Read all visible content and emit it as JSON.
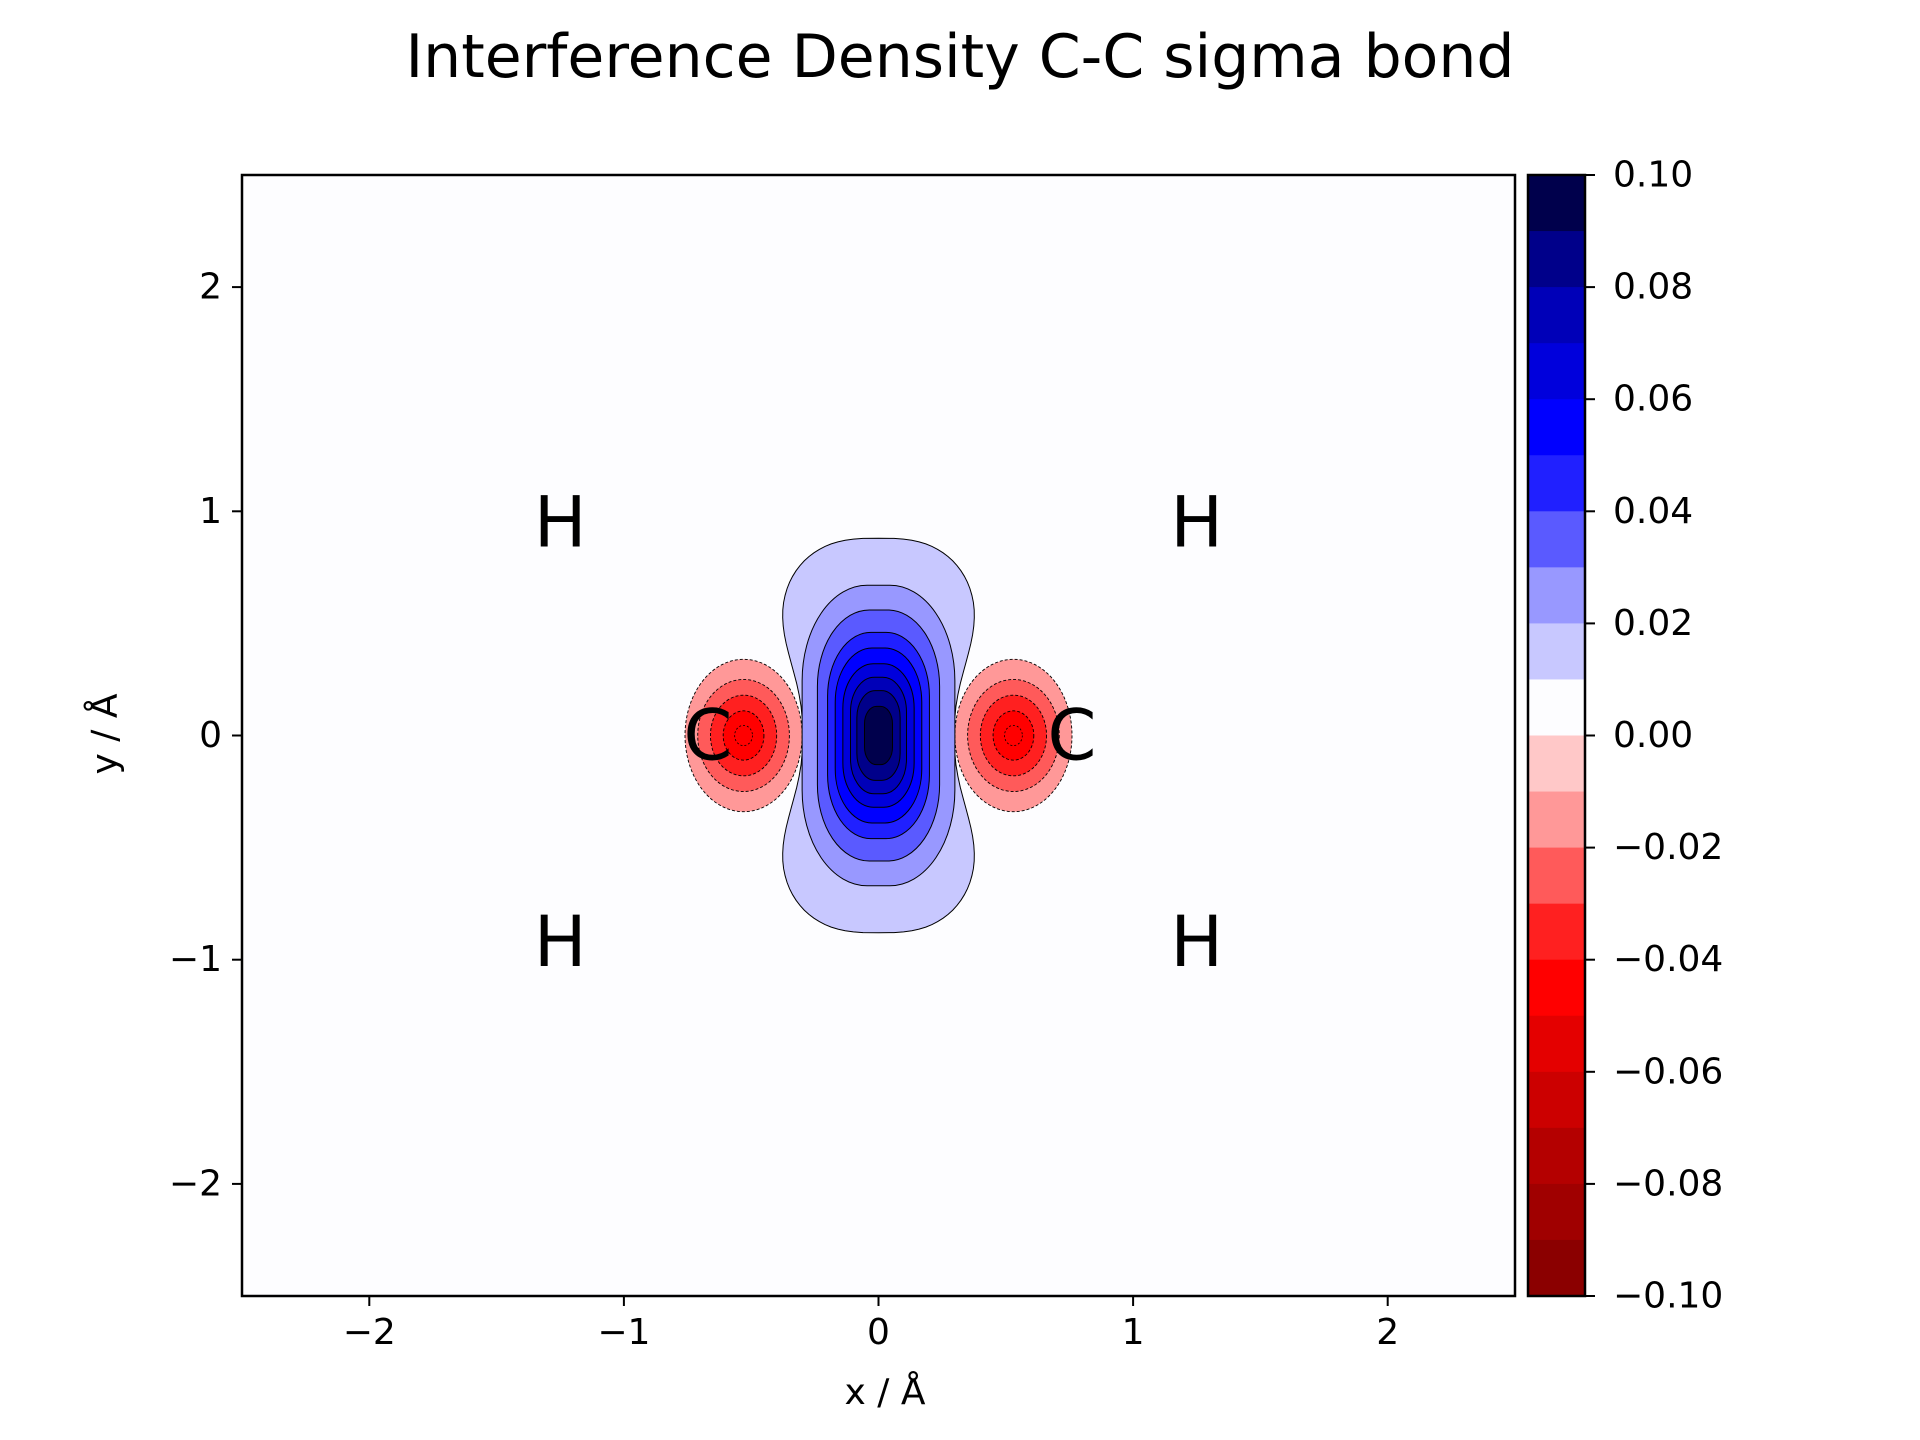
{
  "chart_data": {
    "type": "contour",
    "title": "Interference Density C-C sigma bond",
    "xlabel": "x / Å",
    "ylabel": "y / Å",
    "xlim": [
      -2.5,
      2.5
    ],
    "ylim": [
      -2.5,
      2.5
    ],
    "xticks": [
      -2,
      -1,
      0,
      1,
      2
    ],
    "yticks": [
      -2,
      -1,
      0,
      1,
      2
    ],
    "xtick_labels": [
      "−2",
      "−1",
      "0",
      "1",
      "2"
    ],
    "ytick_labels": [
      "−2",
      "−1",
      "0",
      "1",
      "2"
    ],
    "grid": false,
    "colormap": "seismic_r",
    "colorbar": {
      "range": [
        -0.1,
        0.1
      ],
      "ticks": [
        0.1,
        0.08,
        0.06,
        0.04,
        0.02,
        0.0,
        -0.02,
        -0.04,
        -0.06,
        -0.08,
        -0.1
      ],
      "tick_labels": [
        "0.10",
        "0.08",
        "0.06",
        "0.04",
        "0.02",
        "0.00",
        "−0.02",
        "−0.04",
        "−0.06",
        "−0.08",
        "−0.10"
      ],
      "level_step": 0.01,
      "colors_top_to_bottom": [
        "#00004c",
        "#00008a",
        "#0000b8",
        "#0000dc",
        "#0000ff",
        "#2020ff",
        "#5a5aff",
        "#9898ff",
        "#c8c8ff",
        "#fdfdff",
        "#ffc8c8",
        "#ff9898",
        "#ff5a5a",
        "#ff2020",
        "#ff0000",
        "#e40000",
        "#cc0000",
        "#b40000",
        "#a00000",
        "#8b0000"
      ]
    },
    "atoms": [
      {
        "label": "H",
        "x": -1.25,
        "y": 0.95
      },
      {
        "label": "H",
        "x": 1.25,
        "y": 0.95
      },
      {
        "label": "H",
        "x": -1.25,
        "y": -0.92
      },
      {
        "label": "H",
        "x": 1.25,
        "y": -0.92
      },
      {
        "label": "C",
        "x": -0.67,
        "y": 0.0
      },
      {
        "label": "C",
        "x": 0.76,
        "y": 0.0
      }
    ],
    "positive_lobe": {
      "center": [
        0.0,
        0.0
      ],
      "peak_value": 0.1,
      "contour_levels": [
        {
          "value": 0.01,
          "half_width": 0.48,
          "half_height": 0.88
        },
        {
          "value": 0.02,
          "half_width": 0.3,
          "half_height": 0.67
        },
        {
          "value": 0.03,
          "half_width": 0.24,
          "half_height": 0.56
        },
        {
          "value": 0.04,
          "half_width": 0.2,
          "half_height": 0.46
        },
        {
          "value": 0.05,
          "half_width": 0.17,
          "half_height": 0.39
        },
        {
          "value": 0.06,
          "half_width": 0.14,
          "half_height": 0.32
        },
        {
          "value": 0.07,
          "half_width": 0.11,
          "half_height": 0.26
        },
        {
          "value": 0.08,
          "half_width": 0.085,
          "half_height": 0.2
        },
        {
          "value": 0.09,
          "half_width": 0.055,
          "half_height": 0.13
        }
      ]
    },
    "negative_lobes": [
      {
        "center": [
          -0.53,
          0.0
        ],
        "peak_value": -0.05,
        "contour_levels": [
          {
            "value": -0.01,
            "half_width": 0.23,
            "half_height": 0.34
          },
          {
            "value": -0.02,
            "half_width": 0.18,
            "half_height": 0.25
          },
          {
            "value": -0.03,
            "half_width": 0.13,
            "half_height": 0.18
          },
          {
            "value": -0.04,
            "half_width": 0.08,
            "half_height": 0.11
          }
        ]
      },
      {
        "center": [
          0.53,
          0.0
        ],
        "peak_value": -0.05,
        "contour_levels": [
          {
            "value": -0.01,
            "half_width": 0.23,
            "half_height": 0.34
          },
          {
            "value": -0.02,
            "half_width": 0.18,
            "half_height": 0.25
          },
          {
            "value": -0.03,
            "half_width": 0.13,
            "half_height": 0.18
          },
          {
            "value": -0.04,
            "half_width": 0.08,
            "half_height": 0.11
          }
        ]
      }
    ]
  }
}
